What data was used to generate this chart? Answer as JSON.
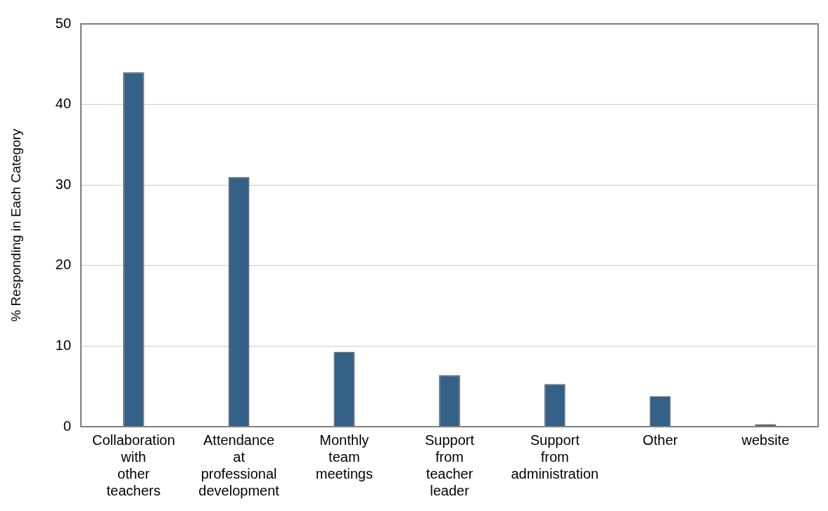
{
  "chart_data": {
    "type": "bar",
    "ylabel": "% Responding in Each Category",
    "categories": [
      "Collaboration with other teachers",
      "Attendance at professional development",
      "Monthly team meetings",
      "Support from teacher leader",
      "Support from administration",
      "Other",
      "website"
    ],
    "values": [
      44.0,
      31.0,
      9.3,
      6.4,
      5.3,
      3.8,
      0.3
    ],
    "color": "#336187",
    "ylim": [
      0,
      50
    ],
    "yticks": [
      0,
      10,
      20,
      30,
      40,
      50
    ],
    "grid": "y",
    "legend": false
  }
}
